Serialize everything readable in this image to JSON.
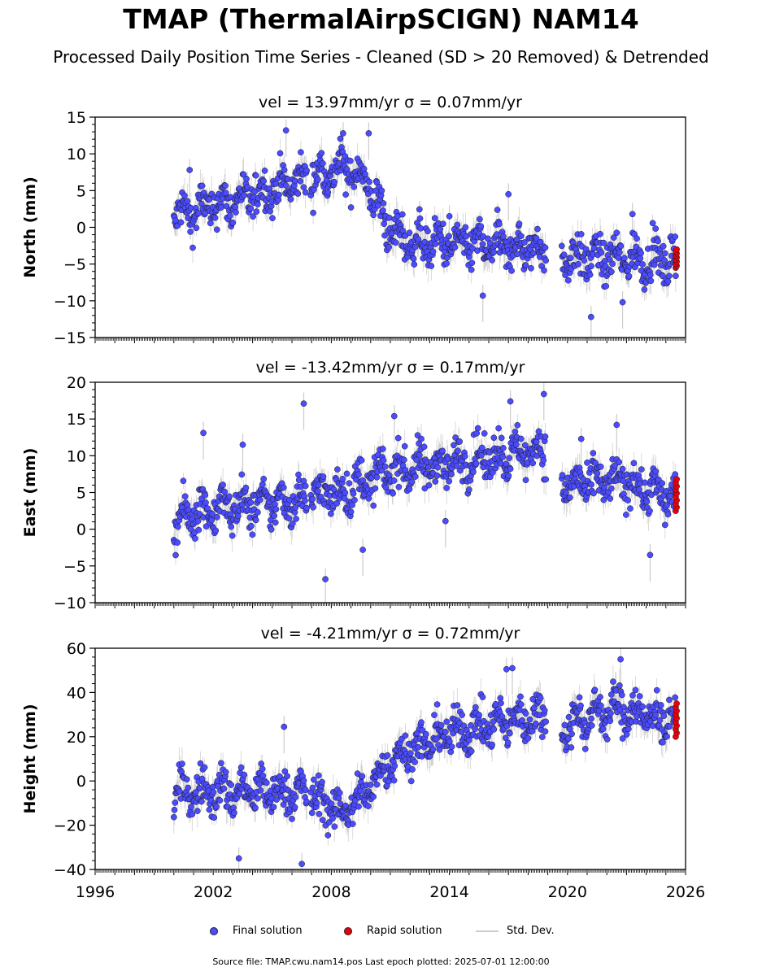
{
  "header": {
    "title": "TMAP (ThermalAirpSCIGN) NAM14",
    "subtitle": "Processed Daily Position Time Series - Cleaned (SD > 20 Removed) & Detrended"
  },
  "legend": {
    "final_label": "Final solution",
    "rapid_label": "Rapid solution",
    "std_label": "Std. Dev."
  },
  "footer": {
    "source": "Source file: TMAP.cwu.nam14.pos  Last epoch plotted: 2025-07-01 12:00:00"
  },
  "colors": {
    "final": "#4b4bff",
    "rapid": "#e8000b",
    "std": "#cccccc"
  },
  "chart_data": [
    {
      "type": "scatter",
      "component": "north",
      "title_text": "vel = 13.97mm/yr   σ = 0.07mm/yr",
      "ylabel": "North (mm)",
      "xlim": [
        1996,
        2026
      ],
      "ylim": [
        -15,
        15
      ],
      "yticks": [
        "15",
        "10",
        "5",
        "0",
        "−5",
        "−10",
        "−15"
      ],
      "xticks": [
        "1996",
        "2002",
        "2008",
        "2014",
        "2020",
        "2026"
      ],
      "gap": [
        2018.9,
        2019.7
      ],
      "trend_points": [
        [
          2000.0,
          1.5
        ],
        [
          2003.0,
          3.5
        ],
        [
          2006.7,
          6.5
        ],
        [
          2008.5,
          8.0
        ],
        [
          2009.6,
          7.0
        ],
        [
          2011.0,
          -0.5
        ],
        [
          2012.0,
          -2.0
        ],
        [
          2018.9,
          -3.0
        ],
        [
          2019.7,
          -4.0
        ],
        [
          2025.5,
          -4.5
        ]
      ],
      "rapid_y_range": [
        -5.5,
        -3.0
      ],
      "outliers": [
        [
          2000.8,
          7.8
        ],
        [
          2005.7,
          13.2
        ],
        [
          2008.6,
          12.8
        ],
        [
          2009.9,
          12.8
        ],
        [
          2014.0,
          1.5
        ],
        [
          2015.7,
          -9.3
        ],
        [
          2017.0,
          4.5
        ],
        [
          2021.2,
          -12.2
        ],
        [
          2022.8,
          -10.2
        ],
        [
          2023.3,
          1.8
        ]
      ]
    },
    {
      "type": "scatter",
      "component": "east",
      "title_text": "vel = -13.42mm/yr   σ = 0.17mm/yr",
      "ylabel": "East (mm)",
      "xlim": [
        1996,
        2026
      ],
      "ylim": [
        -10,
        20
      ],
      "yticks": [
        "20",
        "15",
        "10",
        "5",
        "0",
        "−5",
        "−10"
      ],
      "xticks": [
        "1996",
        "2002",
        "2008",
        "2014",
        "2020",
        "2026"
      ],
      "gap": [
        2018.9,
        2019.7
      ],
      "trend_points": [
        [
          2000.0,
          0.5
        ],
        [
          2001.0,
          2.5
        ],
        [
          2006.7,
          4.0
        ],
        [
          2007.0,
          5.0
        ],
        [
          2008.5,
          5.0
        ],
        [
          2011.0,
          8.0
        ],
        [
          2014.0,
          9.0
        ],
        [
          2018.9,
          11.0
        ],
        [
          2019.7,
          6.0
        ],
        [
          2023.0,
          6.5
        ],
        [
          2025.5,
          4.0
        ]
      ],
      "rapid_y_range": [
        2.5,
        6.8
      ],
      "outliers": [
        [
          2001.5,
          13.1
        ],
        [
          2003.5,
          11.5
        ],
        [
          2006.6,
          17.1
        ],
        [
          2007.7,
          -6.8
        ],
        [
          2009.6,
          -2.8
        ],
        [
          2011.2,
          15.4
        ],
        [
          2013.8,
          1.1
        ],
        [
          2017.1,
          17.4
        ],
        [
          2018.8,
          18.4
        ],
        [
          2020.7,
          12.3
        ],
        [
          2022.5,
          14.2
        ],
        [
          2024.2,
          -3.5
        ]
      ]
    },
    {
      "type": "scatter",
      "component": "height",
      "title_text": "vel = -4.21mm/yr   σ = 0.72mm/yr",
      "ylabel": "Height (mm)",
      "xlim": [
        1996,
        2026
      ],
      "ylim": [
        -40,
        60
      ],
      "yticks": [
        "60",
        "40",
        "20",
        "0",
        "−20",
        "−40"
      ],
      "xticks": [
        "1996",
        "2002",
        "2008",
        "2014",
        "2020",
        "2026"
      ],
      "gap": [
        2018.9,
        2019.7
      ],
      "trend_points": [
        [
          2000.0,
          -5.0
        ],
        [
          2004.0,
          -5.0
        ],
        [
          2006.7,
          -5.0
        ],
        [
          2008.5,
          -15.0
        ],
        [
          2010.0,
          -3.0
        ],
        [
          2011.0,
          10.0
        ],
        [
          2014.0,
          22.0
        ],
        [
          2018.9,
          30.0
        ],
        [
          2019.7,
          25.0
        ],
        [
          2022.5,
          33.0
        ],
        [
          2025.5,
          27.0
        ]
      ],
      "rapid_y_range": [
        20.0,
        35.0
      ],
      "outliers": [
        [
          2005.6,
          24.5
        ],
        [
          2006.5,
          -37.5
        ],
        [
          2003.3,
          -35.0
        ],
        [
          2016.9,
          50.5
        ],
        [
          2022.7,
          55.0
        ],
        [
          2017.2,
          51.0
        ]
      ]
    }
  ]
}
